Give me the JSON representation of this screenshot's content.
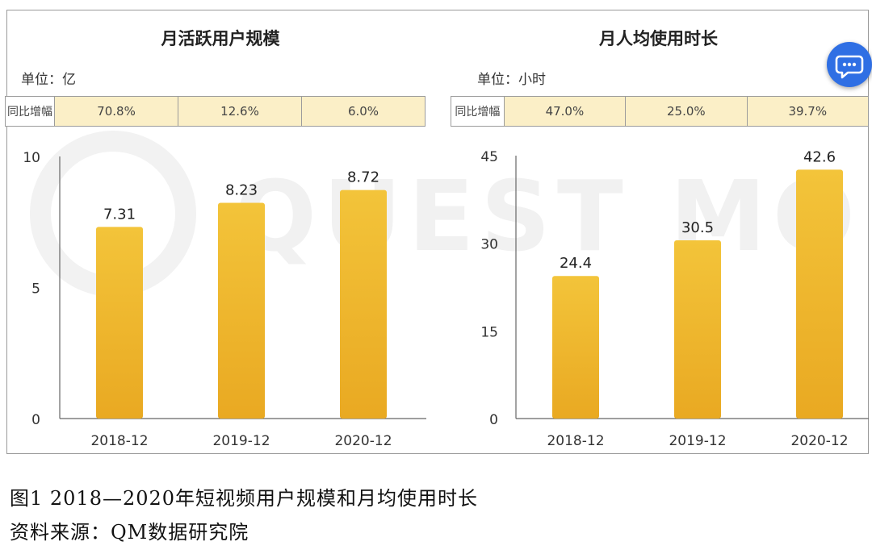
{
  "chart_data": [
    {
      "type": "bar",
      "title": "月活跃用户规模",
      "unit_label": "单位：亿",
      "yoy_label": "同比增幅",
      "yoy": [
        "70.8%",
        "12.6%",
        "6.0%"
      ],
      "categories": [
        "2018-12",
        "2019-12",
        "2020-12"
      ],
      "values": [
        7.31,
        8.23,
        8.72
      ],
      "value_labels": [
        "7.31",
        "8.23",
        "8.72"
      ],
      "yticks": [
        0,
        5,
        10
      ],
      "ytick_labels": [
        "0",
        "5",
        "10"
      ],
      "ylim": [
        0,
        10
      ],
      "bar_color": "#f0bb2a"
    },
    {
      "type": "bar",
      "title": "月人均使用时长",
      "unit_label": "单位：小时",
      "yoy_label": "同比增幅",
      "yoy": [
        "47.0%",
        "25.0%",
        "39.7%"
      ],
      "categories": [
        "2018-12",
        "2019-12",
        "2020-12"
      ],
      "values": [
        24.4,
        30.5,
        42.6
      ],
      "value_labels": [
        "24.4",
        "30.5",
        "42.6"
      ],
      "yticks": [
        0,
        15,
        30,
        45
      ],
      "ytick_labels": [
        "0",
        "15",
        "30",
        "45"
      ],
      "ylim": [
        0,
        45
      ],
      "bar_color": "#f0bb2a"
    }
  ],
  "watermark": "QUEST MOBILE",
  "caption": {
    "line1": "图1  2018—2020年短视频用户规模和月均使用时长",
    "line2": "资料来源：QM数据研究院"
  },
  "chat_icon": "chat-bubble-icon",
  "colors": {
    "accent": "#2f6fe4",
    "bar": "#f0bb2a",
    "yoy_bg": "#fbefc7"
  }
}
